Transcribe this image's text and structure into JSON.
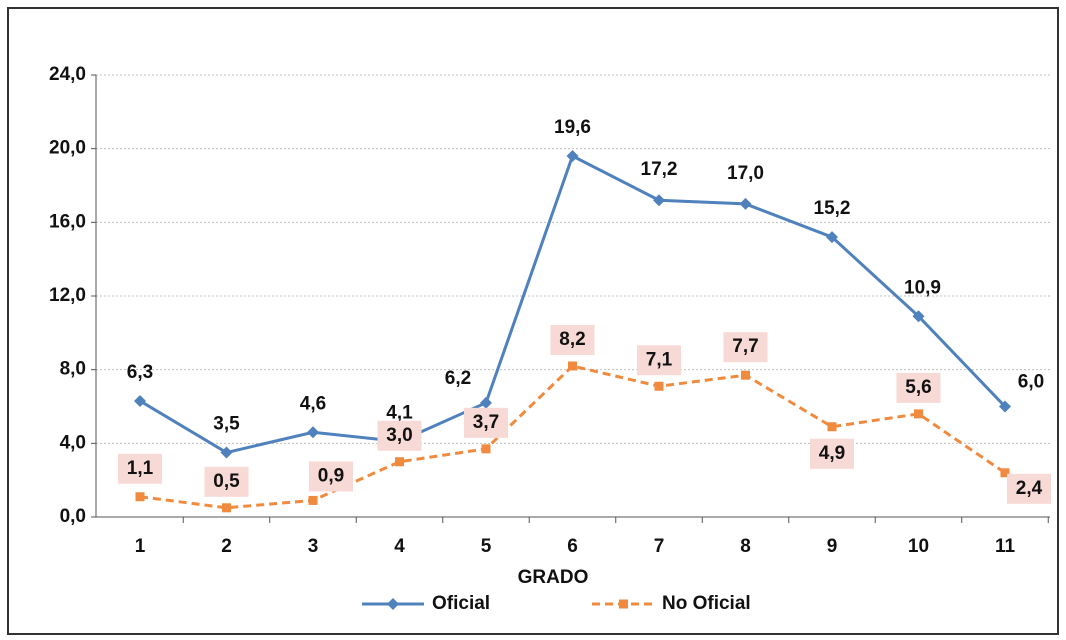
{
  "chart_data": {
    "type": "line",
    "categories": [
      "1",
      "2",
      "3",
      "4",
      "5",
      "6",
      "7",
      "8",
      "9",
      "10",
      "11"
    ],
    "x_label": "GRADO",
    "series": [
      {
        "name": "Oficial",
        "color": "#4f81bd",
        "marker": "diamond",
        "line_style": "solid",
        "values": [
          6.3,
          3.5,
          4.6,
          4.1,
          6.2,
          19.6,
          17.2,
          17.0,
          15.2,
          10.9,
          6.0
        ],
        "value_labels": [
          "6,3",
          "3,5",
          "4,6",
          "4,1",
          "6,2",
          "19,6",
          "17,2",
          "17,0",
          "15,2",
          "10,9",
          "6,0"
        ]
      },
      {
        "name": "No Oficial",
        "color": "#f08a3e",
        "marker": "square",
        "line_style": "dashed",
        "values": [
          1.1,
          0.5,
          0.9,
          3.0,
          3.7,
          8.2,
          7.1,
          7.7,
          4.9,
          5.6,
          2.4
        ],
        "value_labels": [
          "1,1",
          "0,5",
          "0,9",
          "3,0",
          "3,7",
          "8,2",
          "7,1",
          "7,7",
          "4,9",
          "5,6",
          "2,4"
        ]
      }
    ],
    "ylim": [
      0,
      24
    ],
    "yticks": [
      {
        "value": 0,
        "label": "0,0"
      },
      {
        "value": 4,
        "label": "4,0"
      },
      {
        "value": 8,
        "label": "8,0"
      },
      {
        "value": 12,
        "label": "12,0"
      },
      {
        "value": 16,
        "label": "16,0"
      },
      {
        "value": 20,
        "label": "20,0"
      },
      {
        "value": 24,
        "label": "24,0"
      }
    ],
    "grid": true,
    "legend": "bottom"
  }
}
